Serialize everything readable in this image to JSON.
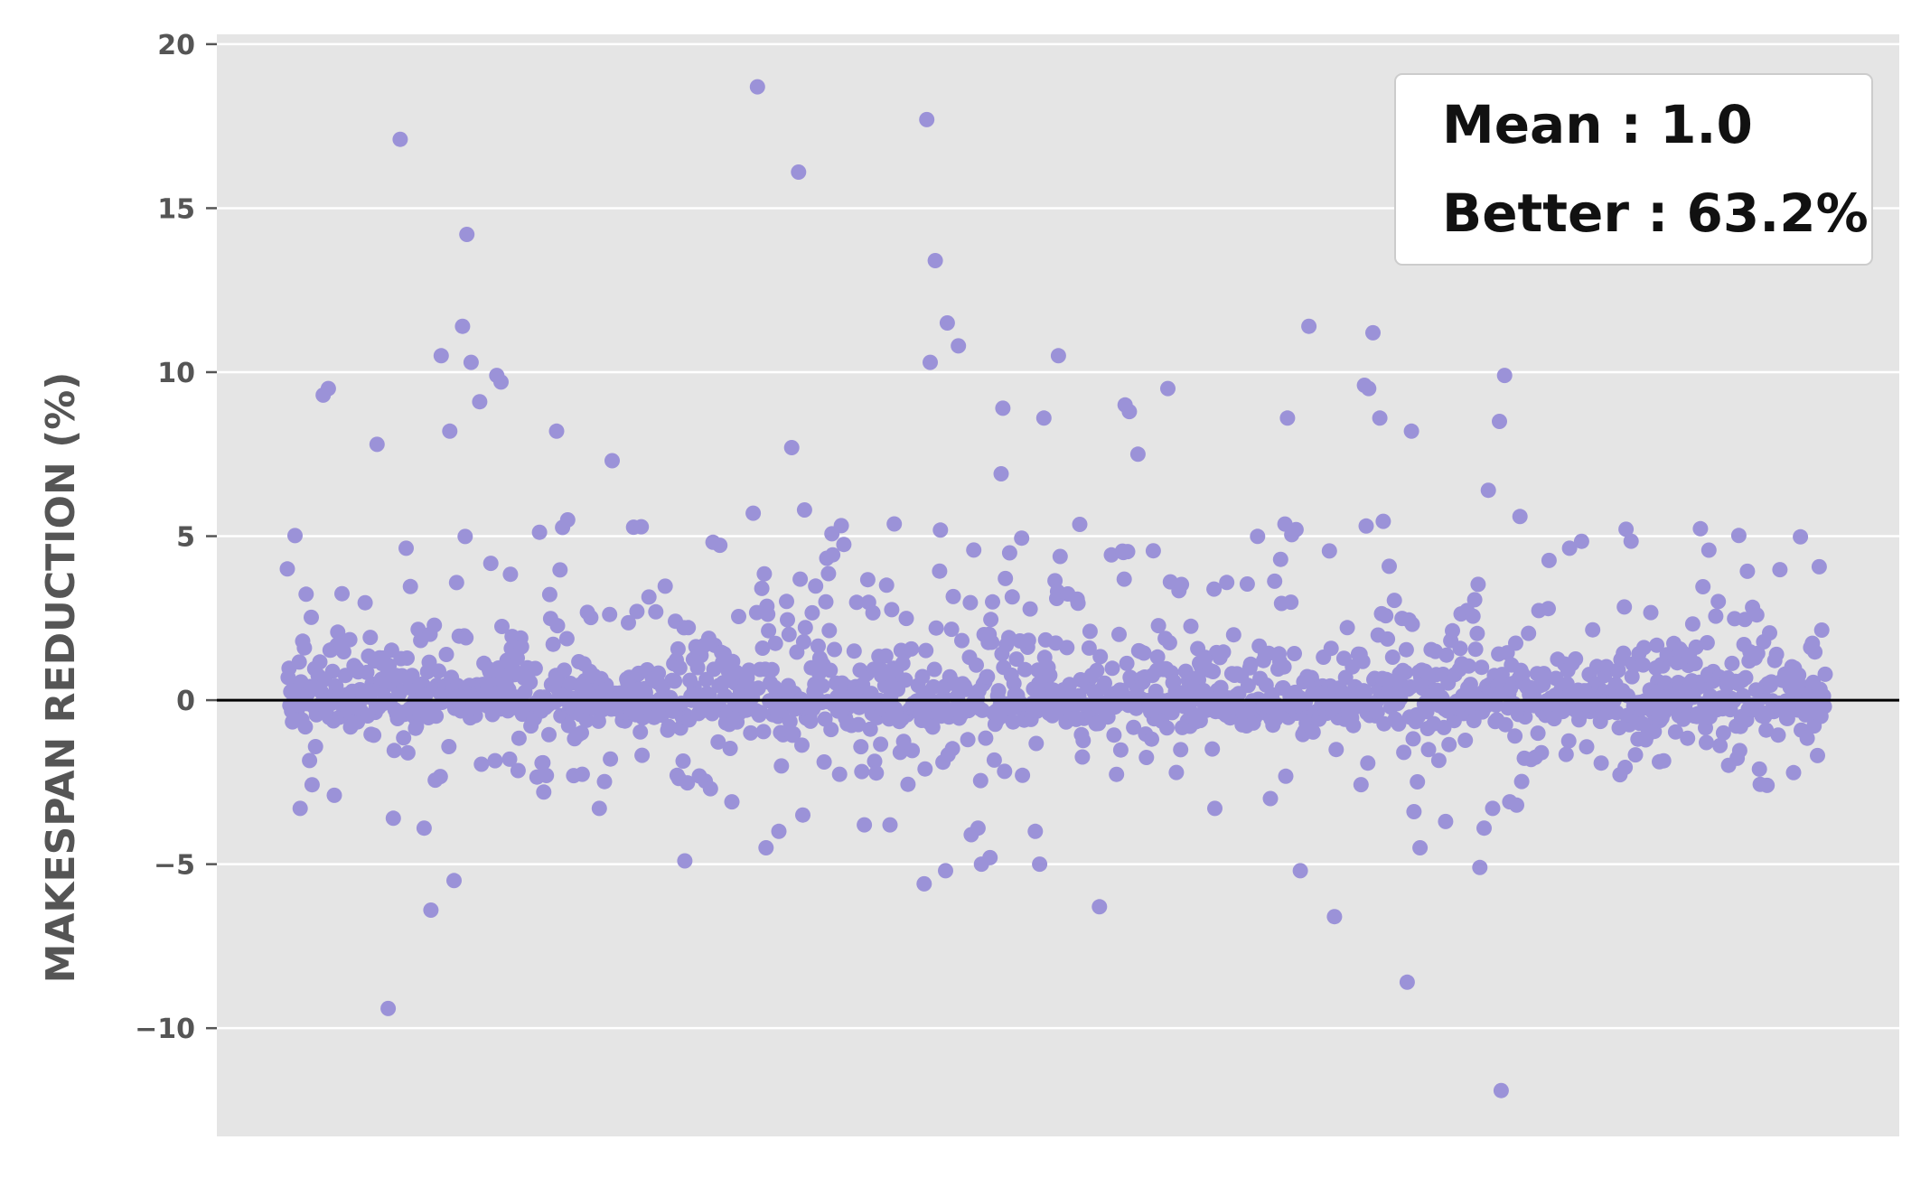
{
  "chart_data": {
    "type": "scatter",
    "title": "",
    "xlabel": "",
    "ylabel": "MAKESPAN REDUCTION (%)",
    "ylim": [
      -13.3,
      20.3
    ],
    "y_ticks": [
      20,
      15,
      10,
      5,
      0,
      -5,
      -10
    ],
    "y_tick_labels": [
      "20",
      "15",
      "10",
      "5",
      "0",
      "−5",
      "−10"
    ],
    "grid": true,
    "reference_line": 0,
    "legend_position": "top-right",
    "legend_entries": [
      "Mean : 1.0",
      "Better : 63.2%"
    ],
    "colors": {
      "points": "#9b92d8",
      "plot_background": "#e5e5e5",
      "grid": "#ffffff",
      "zero_line": "#000000"
    },
    "n_points": 1800,
    "mean": 1.0,
    "percent_better": 63.2,
    "outliers": [
      {
        "x": 15,
        "y": -3.3
      },
      {
        "x": 42,
        "y": 9.3
      },
      {
        "x": 48,
        "y": 9.5
      },
      {
        "x": 55,
        "y": -2.9
      },
      {
        "x": 105,
        "y": 7.8
      },
      {
        "x": 118,
        "y": -9.4
      },
      {
        "x": 124,
        "y": -3.6
      },
      {
        "x": 132,
        "y": 17.1
      },
      {
        "x": 160,
        "y": -3.9
      },
      {
        "x": 168,
        "y": -6.4
      },
      {
        "x": 180,
        "y": 10.5
      },
      {
        "x": 190,
        "y": 8.2
      },
      {
        "x": 195,
        "y": -5.5
      },
      {
        "x": 205,
        "y": 11.4
      },
      {
        "x": 210,
        "y": 14.2
      },
      {
        "x": 215,
        "y": 10.3
      },
      {
        "x": 225,
        "y": 9.1
      },
      {
        "x": 245,
        "y": 9.9
      },
      {
        "x": 250,
        "y": 9.7
      },
      {
        "x": 300,
        "y": -2.8
      },
      {
        "x": 315,
        "y": 8.2
      },
      {
        "x": 335,
        "y": -2.3
      },
      {
        "x": 365,
        "y": -3.3
      },
      {
        "x": 380,
        "y": 7.3
      },
      {
        "x": 465,
        "y": -4.9
      },
      {
        "x": 495,
        "y": -2.7
      },
      {
        "x": 520,
        "y": -3.1
      },
      {
        "x": 545,
        "y": 5.7
      },
      {
        "x": 550,
        "y": 18.7
      },
      {
        "x": 560,
        "y": -4.5
      },
      {
        "x": 575,
        "y": -4.0
      },
      {
        "x": 590,
        "y": 7.7
      },
      {
        "x": 598,
        "y": 16.1
      },
      {
        "x": 603,
        "y": -3.5
      },
      {
        "x": 605,
        "y": 5.8
      },
      {
        "x": 675,
        "y": -3.8
      },
      {
        "x": 705,
        "y": -3.8
      },
      {
        "x": 745,
        "y": -5.6
      },
      {
        "x": 748,
        "y": 17.7
      },
      {
        "x": 752,
        "y": 10.3
      },
      {
        "x": 758,
        "y": 13.4
      },
      {
        "x": 770,
        "y": -5.2
      },
      {
        "x": 772,
        "y": 11.5
      },
      {
        "x": 785,
        "y": 10.8
      },
      {
        "x": 800,
        "y": -4.1
      },
      {
        "x": 808,
        "y": -3.9
      },
      {
        "x": 812,
        "y": -5.0
      },
      {
        "x": 822,
        "y": -4.8
      },
      {
        "x": 835,
        "y": 6.9
      },
      {
        "x": 837,
        "y": 8.9
      },
      {
        "x": 875,
        "y": -4.0
      },
      {
        "x": 880,
        "y": -5.0
      },
      {
        "x": 885,
        "y": 8.6
      },
      {
        "x": 902,
        "y": 10.5
      },
      {
        "x": 950,
        "y": -6.3
      },
      {
        "x": 980,
        "y": 9.0
      },
      {
        "x": 985,
        "y": 8.8
      },
      {
        "x": 995,
        "y": 7.5
      },
      {
        "x": 1030,
        "y": 9.5
      },
      {
        "x": 1085,
        "y": -3.3
      },
      {
        "x": 1150,
        "y": -3.0
      },
      {
        "x": 1170,
        "y": 8.6
      },
      {
        "x": 1185,
        "y": -5.2
      },
      {
        "x": 1195,
        "y": 11.4
      },
      {
        "x": 1225,
        "y": -6.6
      },
      {
        "x": 1260,
        "y": 9.6
      },
      {
        "x": 1265,
        "y": 9.5
      },
      {
        "x": 1270,
        "y": 11.2
      },
      {
        "x": 1278,
        "y": 8.6
      },
      {
        "x": 1310,
        "y": -8.6
      },
      {
        "x": 1315,
        "y": 8.2
      },
      {
        "x": 1318,
        "y": -3.4
      },
      {
        "x": 1325,
        "y": -4.5
      },
      {
        "x": 1355,
        "y": -3.7
      },
      {
        "x": 1395,
        "y": -5.1
      },
      {
        "x": 1400,
        "y": -3.9
      },
      {
        "x": 1405,
        "y": 6.4
      },
      {
        "x": 1410,
        "y": -3.3
      },
      {
        "x": 1418,
        "y": 8.5
      },
      {
        "x": 1420,
        "y": -11.9
      },
      {
        "x": 1424,
        "y": 9.9
      },
      {
        "x": 1430,
        "y": -3.1
      },
      {
        "x": 1438,
        "y": -3.2
      },
      {
        "x": 1442,
        "y": 5.6
      }
    ]
  }
}
